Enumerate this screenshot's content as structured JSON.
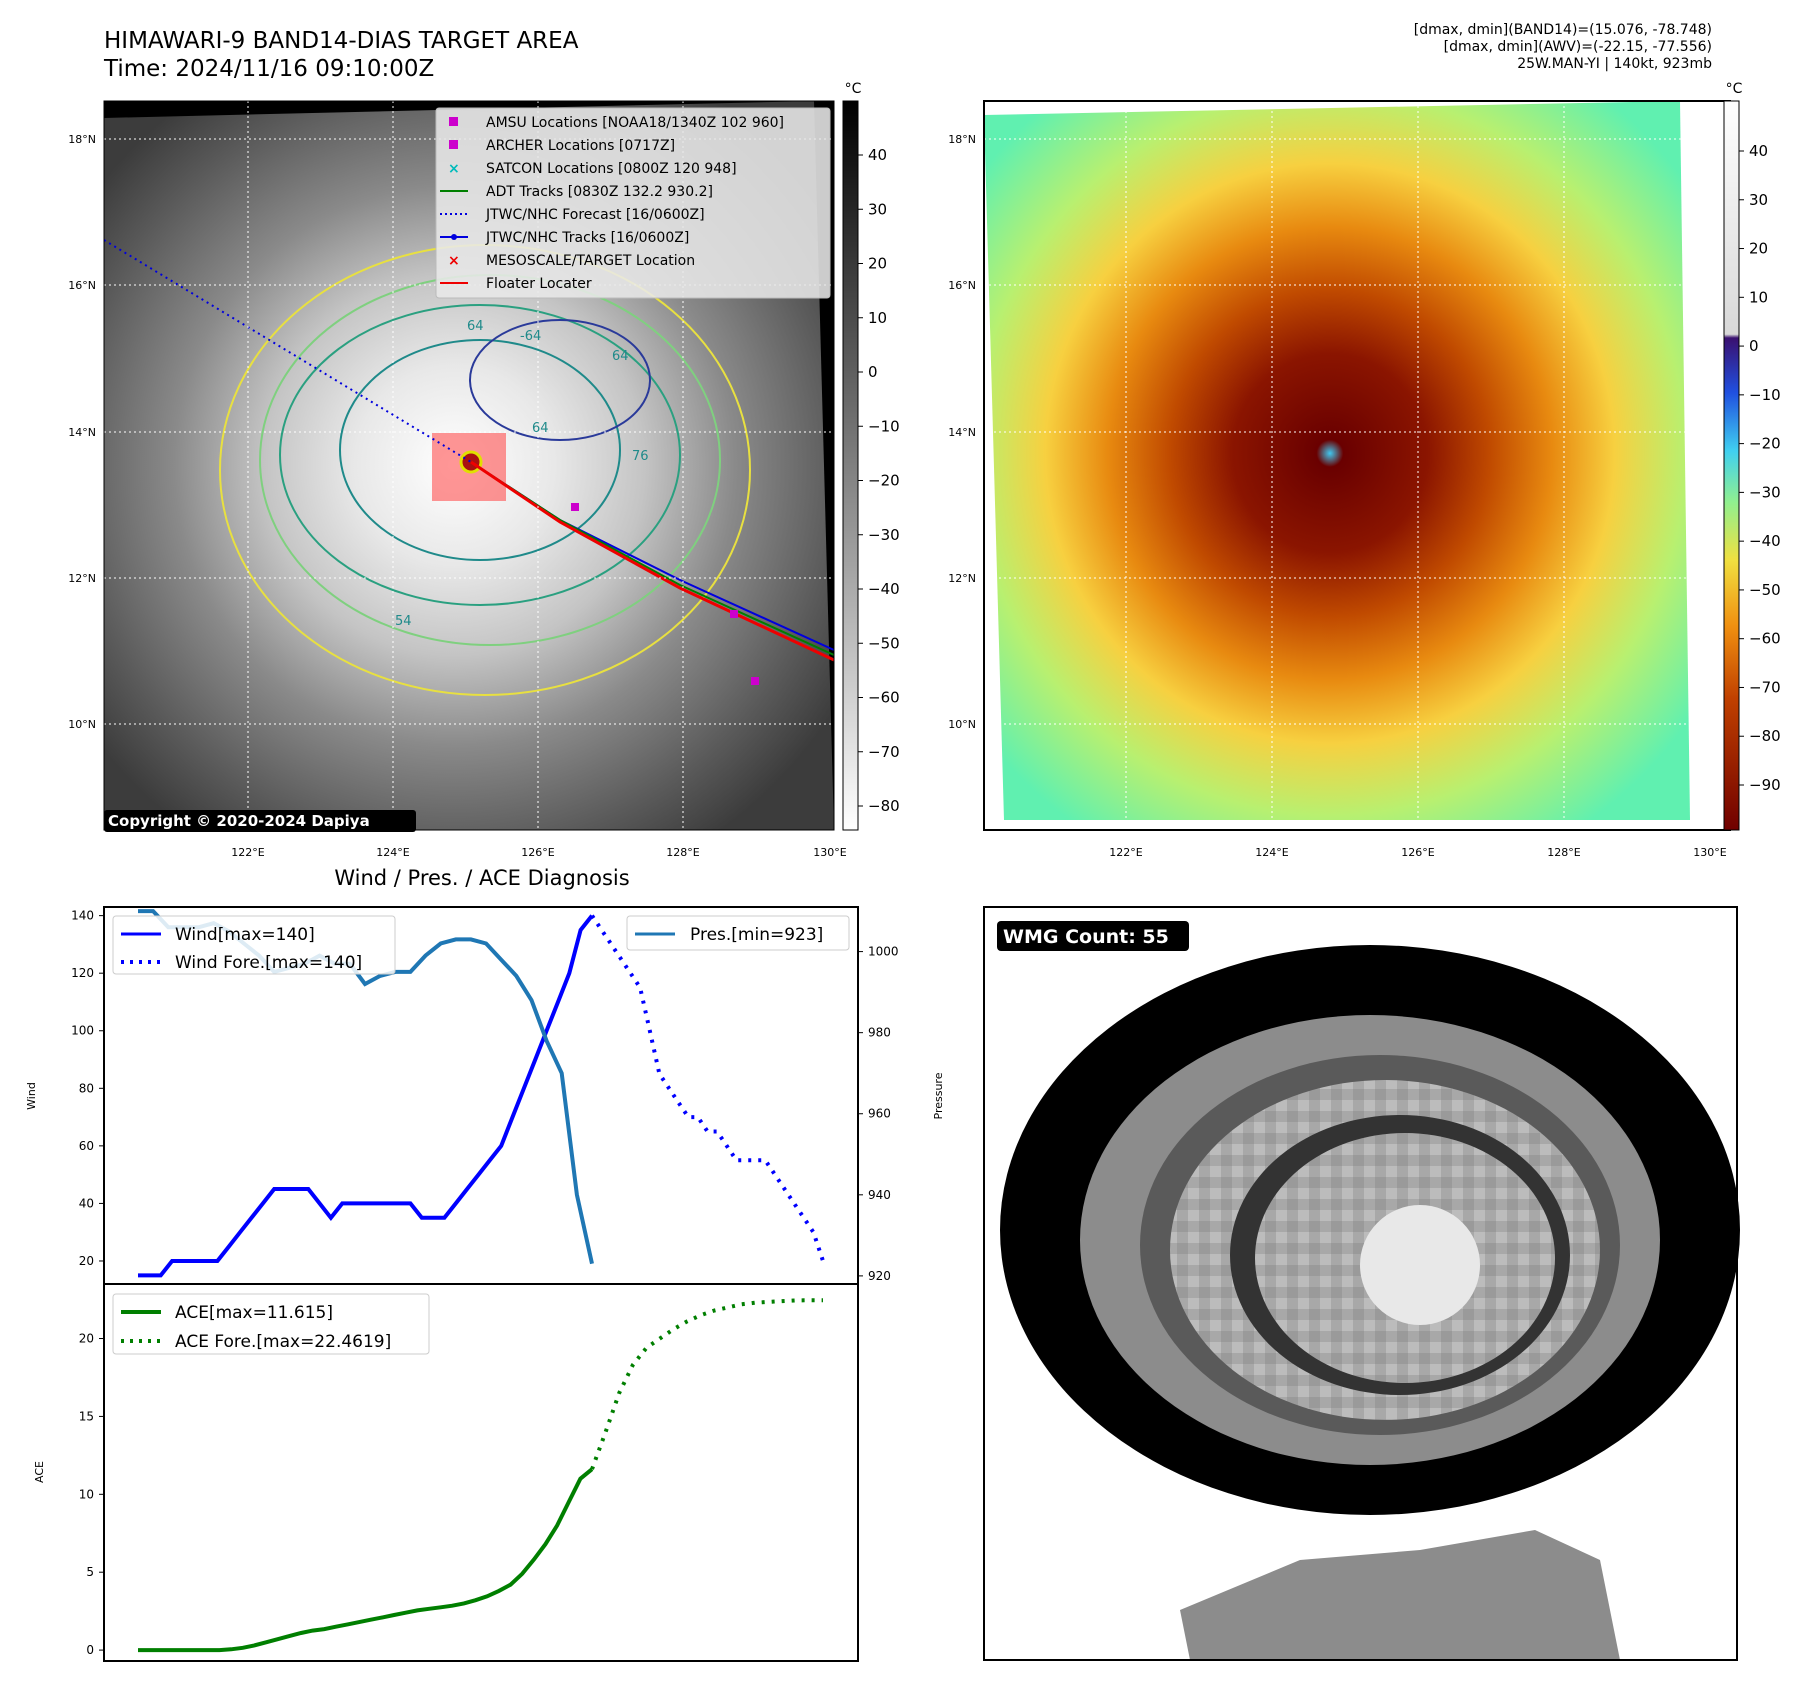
{
  "header": {
    "title_line1": "HIMAWARI-9 BAND14-DIAS TARGET AREA",
    "title_line2": "Time: 2024/11/16 09:10:00Z",
    "info_line1": "[dmax, dmin](BAND14)=(15.076, -78.748)",
    "info_line2": "[dmax, dmin](AWV)=(-22.15, -77.556)",
    "info_line3": "25W.MAN-YI | 140kt, 923mb"
  },
  "map_left": {
    "lat_ticks": [
      "18°N",
      "16°N",
      "14°N",
      "12°N",
      "10°N"
    ],
    "lon_ticks": [
      "122°E",
      "124°E",
      "126°E",
      "128°E",
      "130°E"
    ],
    "colorbar_unit": "°C",
    "colorbar_ticks": [
      "40",
      "30",
      "20",
      "10",
      "0",
      "−10",
      "−20",
      "−30",
      "−40",
      "−50",
      "−60",
      "−70",
      "−80"
    ],
    "copyright": "Copyright © 2020-2024 Dapiya",
    "contour_labels": [
      "64",
      "-64",
      "64",
      "64",
      "54",
      "76"
    ],
    "legend": [
      {
        "label": "AMSU Locations [NOAA18/1340Z 102 960]",
        "color": "#cc00cc",
        "marker": "square"
      },
      {
        "label": "ARCHER Locations [0717Z]",
        "color": "#cc00cc",
        "marker": "square"
      },
      {
        "label": "SATCON Locations [0800Z 120 948]",
        "color": "#00bbbb",
        "marker": "x"
      },
      {
        "label": "ADT Tracks [0830Z 132.2 930.2]",
        "color": "#007f00",
        "marker": "line"
      },
      {
        "label": "JTWC/NHC Forecast [16/0600Z]",
        "color": "#0000dd",
        "marker": "dotted"
      },
      {
        "label": "JTWC/NHC Tracks [16/0600Z]",
        "color": "#0000dd",
        "marker": "line-dot"
      },
      {
        "label": "MESOSCALE/TARGET Location",
        "color": "#ee0000",
        "marker": "x"
      },
      {
        "label": "Floater Locater",
        "color": "#ee0000",
        "marker": "line"
      }
    ]
  },
  "map_right": {
    "lat_ticks": [
      "18°N",
      "16°N",
      "14°N",
      "12°N",
      "10°N"
    ],
    "lon_ticks": [
      "122°E",
      "124°E",
      "126°E",
      "128°E",
      "130°E"
    ],
    "colorbar_unit": "°C",
    "colorbar_ticks": [
      "40",
      "30",
      "20",
      "10",
      "0",
      "−10",
      "−20",
      "−30",
      "−40",
      "−50",
      "−60",
      "−70",
      "−80",
      "−90"
    ]
  },
  "wmg_panel": {
    "label": "WMG Count: 55"
  },
  "chart_data": [
    {
      "type": "line",
      "title": "Wind / Pres. / ACE Diagnosis",
      "ylabel": "Wind",
      "y2label": "Pressure",
      "ylim": [
        12,
        143
      ],
      "y2lim": [
        918,
        1011
      ],
      "yticks": [
        "20",
        "40",
        "60",
        "80",
        "100",
        "120",
        "140"
      ],
      "y2ticks": [
        "920",
        "940",
        "960",
        "980",
        "1000"
      ],
      "series": [
        {
          "name": "Wind[max=140]",
          "axis": "left",
          "color": "#0000ff",
          "style": "solid",
          "values": [
            15,
            15,
            15,
            20,
            20,
            20,
            20,
            20,
            25,
            30,
            35,
            40,
            45,
            45,
            45,
            45,
            40,
            35,
            40,
            40,
            40,
            40,
            40,
            40,
            40,
            35,
            35,
            35,
            40,
            45,
            50,
            55,
            60,
            70,
            80,
            90,
            100,
            110,
            120,
            135,
            140
          ]
        },
        {
          "name": "Wind Fore.[max=140]",
          "axis": "left",
          "color": "#0000ff",
          "style": "dotted",
          "values": [
            140,
            135,
            130,
            125,
            120,
            115,
            100,
            85,
            80,
            75,
            70,
            70,
            65,
            65,
            60,
            55,
            55,
            55,
            55,
            50,
            45,
            40,
            35,
            30,
            20
          ]
        },
        {
          "name": "Pres.[min=923]",
          "axis": "right",
          "color": "#1f77b4",
          "style": "solid",
          "values": [
            1010,
            1010,
            1006,
            1006,
            1006,
            1007,
            1005,
            1002,
            999,
            995,
            996,
            997,
            999,
            997,
            997,
            992,
            994,
            995,
            995,
            999,
            1002,
            1003,
            1003,
            1002,
            998,
            994,
            988,
            978,
            970,
            940,
            923
          ]
        }
      ]
    },
    {
      "type": "line",
      "ylabel": "ACE",
      "ylim": [
        -0.7,
        23.5
      ],
      "yticks": [
        "0",
        "5",
        "10",
        "15",
        "20"
      ],
      "series": [
        {
          "name": "ACE[max=11.615]",
          "color": "#007f00",
          "style": "solid",
          "values": [
            0,
            0,
            0,
            0,
            0,
            0,
            0,
            0,
            0.05,
            0.15,
            0.3,
            0.5,
            0.7,
            0.9,
            1.1,
            1.25,
            1.35,
            1.5,
            1.65,
            1.8,
            1.95,
            2.1,
            2.25,
            2.4,
            2.55,
            2.65,
            2.75,
            2.85,
            3.0,
            3.2,
            3.45,
            3.8,
            4.2,
            4.9,
            5.8,
            6.8,
            8.0,
            9.5,
            11.0,
            11.615
          ]
        },
        {
          "name": "ACE Fore.[max=22.4619]",
          "color": "#007f00",
          "style": "dotted",
          "values": [
            11.615,
            14.0,
            16.5,
            18.3,
            19.4,
            20.0,
            20.6,
            21.1,
            21.5,
            21.8,
            22.0,
            22.2,
            22.3,
            22.35,
            22.4,
            22.45,
            22.4619,
            22.4619
          ]
        }
      ]
    }
  ]
}
